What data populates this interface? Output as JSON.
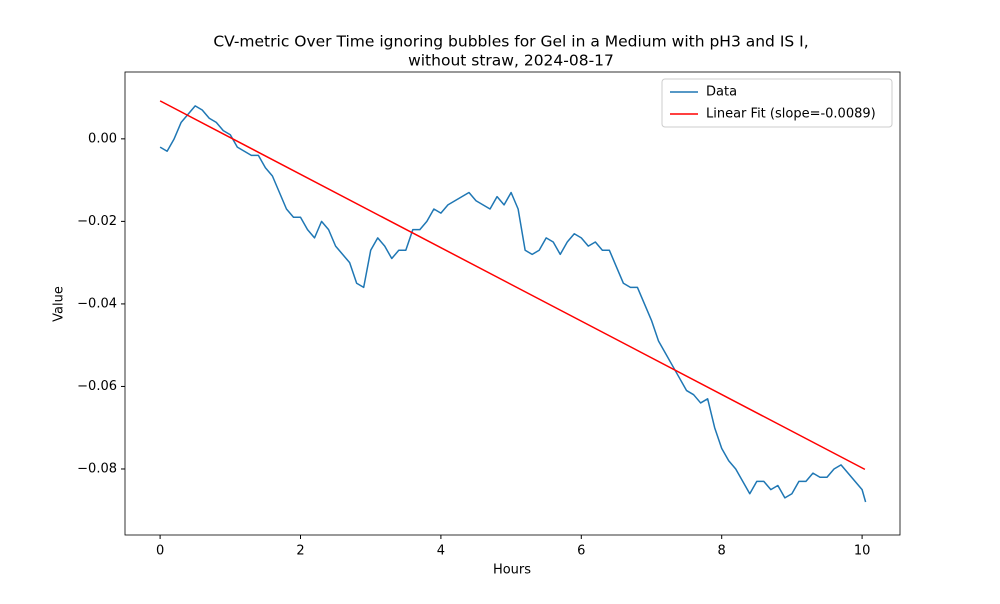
{
  "chart_data": {
    "type": "line",
    "title": [
      "CV-metric Over Time ignoring bubbles for Gel in a Medium with pH3 and IS I,",
      "without straw, 2024-08-17"
    ],
    "x_label": "Hours",
    "y_label": "Value",
    "xlim": [
      -0.5,
      10.54
    ],
    "ylim": [
      -0.096,
      0.0162
    ],
    "xticks": [
      0,
      2,
      4,
      6,
      8,
      10
    ],
    "yticks": [
      {
        "value": -0.08,
        "label": "−0.08"
      },
      {
        "value": -0.06,
        "label": "−0.06"
      },
      {
        "value": -0.04,
        "label": "−0.04"
      },
      {
        "value": -0.02,
        "label": "−0.02"
      },
      {
        "value": 0,
        "label": "0.00"
      }
    ],
    "legend": "upper right",
    "grid": false,
    "series": [
      {
        "name": "Data",
        "color": "#1f77b4",
        "x": [
          0,
          0.1,
          0.2,
          0.3,
          0.4,
          0.5,
          0.6,
          0.7,
          0.8,
          0.9,
          1.0,
          1.1,
          1.2,
          1.3,
          1.4,
          1.5,
          1.6,
          1.7,
          1.8,
          1.9,
          2.0,
          2.1,
          2.2,
          2.3,
          2.4,
          2.5,
          2.6,
          2.7,
          2.8,
          2.9,
          3.0,
          3.1,
          3.2,
          3.3,
          3.4,
          3.5,
          3.6,
          3.7,
          3.8,
          3.9,
          4.0,
          4.1,
          4.2,
          4.3,
          4.4,
          4.5,
          4.6,
          4.7,
          4.8,
          4.9,
          5.0,
          5.1,
          5.2,
          5.3,
          5.4,
          5.5,
          5.6,
          5.7,
          5.8,
          5.9,
          6.0,
          6.1,
          6.2,
          6.3,
          6.4,
          6.5,
          6.6,
          6.7,
          6.8,
          6.9,
          7.0,
          7.1,
          7.2,
          7.3,
          7.4,
          7.5,
          7.6,
          7.7,
          7.8,
          7.9,
          8.0,
          8.1,
          8.2,
          8.3,
          8.4,
          8.5,
          8.6,
          8.7,
          8.8,
          8.9,
          9.0,
          9.1,
          9.2,
          9.3,
          9.4,
          9.5,
          9.6,
          9.7,
          9.8,
          9.9,
          10.0,
          10.05
        ],
        "values": [
          -0.002,
          -0.003,
          0.0,
          0.004,
          0.006,
          0.008,
          0.007,
          0.005,
          0.004,
          0.002,
          0.001,
          -0.002,
          -0.003,
          -0.004,
          -0.004,
          -0.007,
          -0.009,
          -0.013,
          -0.017,
          -0.019,
          -0.019,
          -0.022,
          -0.024,
          -0.02,
          -0.022,
          -0.026,
          -0.028,
          -0.03,
          -0.035,
          -0.036,
          -0.027,
          -0.024,
          -0.026,
          -0.029,
          -0.027,
          -0.027,
          -0.022,
          -0.022,
          -0.02,
          -0.017,
          -0.018,
          -0.016,
          -0.015,
          -0.014,
          -0.013,
          -0.015,
          -0.016,
          -0.017,
          -0.014,
          -0.016,
          -0.013,
          -0.017,
          -0.027,
          -0.028,
          -0.027,
          -0.024,
          -0.025,
          -0.028,
          -0.025,
          -0.023,
          -0.024,
          -0.026,
          -0.025,
          -0.027,
          -0.027,
          -0.031,
          -0.035,
          -0.036,
          -0.036,
          -0.04,
          -0.044,
          -0.049,
          -0.052,
          -0.055,
          -0.058,
          -0.061,
          -0.062,
          -0.064,
          -0.063,
          -0.07,
          -0.075,
          -0.078,
          -0.08,
          -0.083,
          -0.086,
          -0.083,
          -0.083,
          -0.085,
          -0.084,
          -0.087,
          -0.086,
          -0.083,
          -0.083,
          -0.081,
          -0.082,
          -0.082,
          -0.08,
          -0.079,
          -0.081,
          -0.083,
          -0.085,
          -0.088
        ]
      },
      {
        "name": "Linear Fit (slope=-0.0089)",
        "color": "#ff0000",
        "x": [
          0,
          10.04
        ],
        "values": [
          0.0092,
          -0.0801
        ]
      }
    ]
  }
}
